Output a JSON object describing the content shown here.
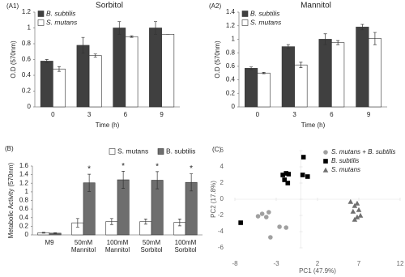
{
  "chart_data": [
    {
      "type": "bar",
      "panel_label": "(A1)",
      "title": "Sorbitol",
      "y_label": "O.D (570nm)",
      "x_label": "Time (h)",
      "categories": [
        "0",
        "3",
        "6",
        "9"
      ],
      "series": [
        {
          "name": "B. subtilis",
          "color": "#404040",
          "values": [
            0.58,
            0.78,
            1.0,
            1.0
          ],
          "errors": [
            0.02,
            0.1,
            0.08,
            0.08
          ]
        },
        {
          "name": "S. mutans",
          "color": "#ffffff",
          "values": [
            0.48,
            0.65,
            0.89,
            0.92
          ],
          "errors": [
            0.03,
            0.02,
            0.01,
            0.0
          ]
        }
      ],
      "ylim": [
        0,
        1.2
      ],
      "yticks": [
        0,
        0.2,
        0.4,
        0.6,
        0.8,
        1,
        1.2
      ],
      "legend": "top-left",
      "legend_style": "italic"
    },
    {
      "type": "bar",
      "panel_label": "(A2)",
      "title": "Mannitol",
      "y_label": "O.D (570nm)",
      "x_label": "Time (h)",
      "categories": [
        "0",
        "3",
        "6",
        "9"
      ],
      "series": [
        {
          "name": "B. subtilis",
          "color": "#404040",
          "values": [
            0.57,
            0.89,
            1.0,
            1.18
          ],
          "errors": [
            0.02,
            0.03,
            0.08,
            0.04
          ]
        },
        {
          "name": "S. mutans",
          "color": "#ffffff",
          "values": [
            0.5,
            0.62,
            0.95,
            1.01
          ],
          "errors": [
            0.01,
            0.04,
            0.03,
            0.09
          ]
        }
      ],
      "ylim": [
        0,
        1.4
      ],
      "yticks": [
        0,
        0.2,
        0.4,
        0.6,
        0.8,
        1,
        1.2,
        1.4
      ],
      "legend": "top-left",
      "legend_style": "italic"
    },
    {
      "type": "bar",
      "panel_label": "(B)",
      "y_label": "Metabolic Activity (570nm)",
      "categories": [
        "M9",
        "50mM Mannitol",
        "100mM Mannitol",
        "50mM Sorbitol",
        "100mM Sorbitol"
      ],
      "series": [
        {
          "name": "S. mutans",
          "color": "#ffffff",
          "values": [
            0.05,
            0.28,
            0.31,
            0.31,
            0.29
          ],
          "errors": [
            0.01,
            0.1,
            0.07,
            0.06,
            0.08
          ]
        },
        {
          "name": "B. subtilis",
          "color": "#6e6e6e",
          "values": [
            0.04,
            1.21,
            1.28,
            1.27,
            1.22
          ],
          "errors": [
            0.01,
            0.2,
            0.2,
            0.2,
            0.2
          ],
          "annotations": [
            null,
            "*",
            "*",
            "*",
            "*"
          ]
        }
      ],
      "ylim": [
        0,
        1.6
      ],
      "yticks": [
        0,
        0.2,
        0.4,
        0.6,
        0.8,
        1,
        1.2,
        1.4,
        1.6
      ],
      "legend": "top",
      "legend_style": "normal"
    },
    {
      "type": "scatter",
      "panel_label": "(C)",
      "x_label": "PC1 (47.9%)",
      "y_label": "PC2 (17.8%)",
      "series": [
        {
          "name": "S. mutans + B. subtilis",
          "color": "#a0a0a0",
          "marker": "circle",
          "x": [
            -5.2,
            -4.7,
            -3.9,
            -4.2,
            -3.7,
            -2.6,
            -1.8
          ],
          "values": [
            -2.1,
            -1.8,
            -1.6,
            -2.2,
            -4.7,
            -3.4,
            -3.5
          ]
        },
        {
          "name": "B. subtilis",
          "color": "#000000",
          "marker": "square",
          "x": [
            -2.2,
            -1.8,
            -1.5,
            -2.0,
            -1.6,
            0.3,
            0.2,
            0.8,
            -7.3
          ],
          "values": [
            3.0,
            3.2,
            3.1,
            2.4,
            2.0,
            5.2,
            3.0,
            2.8,
            -2.9
          ]
        },
        {
          "name": "S. mutans",
          "color": "#707070",
          "marker": "triangle",
          "x": [
            6.0,
            6.5,
            6.8,
            6.3,
            7.0,
            6.8,
            7.2,
            6.5
          ],
          "values": [
            -0.3,
            -0.8,
            -0.5,
            -1.5,
            -1.3,
            -2.2,
            -2.0,
            -2.5
          ]
        }
      ],
      "xlim": [
        -8,
        12
      ],
      "xticks": [
        -8,
        -3,
        2,
        7,
        12
      ],
      "ylim": [
        -6,
        6
      ],
      "yticks": [
        -6,
        -4,
        -2,
        0,
        2,
        4,
        6
      ],
      "legend": "top-right",
      "legend_style": "italic"
    }
  ]
}
